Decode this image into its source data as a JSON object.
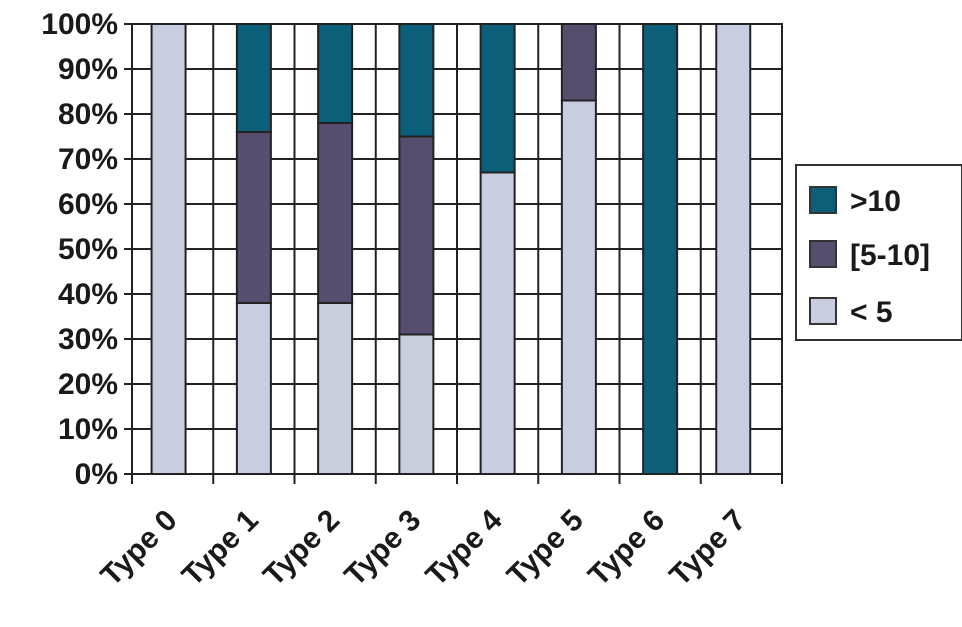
{
  "chart_data": {
    "type": "bar",
    "stacked": true,
    "percent": true,
    "categories": [
      "Type 0",
      "Type 1",
      "Type 2",
      "Type 3",
      "Type 4",
      "Type 5",
      "Type 6",
      "Type 7"
    ],
    "series": [
      {
        "name": "< 5",
        "values": [
          100,
          38,
          38,
          31,
          67,
          83,
          0,
          100
        ],
        "color": "#c9cde0"
      },
      {
        "name": "[5-10]",
        "values": [
          0,
          38,
          40,
          44,
          0,
          17,
          0,
          0
        ],
        "color": "#564d6f"
      },
      {
        "name": ">10",
        "values": [
          0,
          24,
          22,
          25,
          33,
          0,
          100,
          0
        ],
        "color": "#0b5f79"
      }
    ],
    "yticks": [
      "0%",
      "10%",
      "20%",
      "30%",
      "40%",
      "50%",
      "60%",
      "70%",
      "80%",
      "90%",
      "100%"
    ],
    "ylim": [
      0,
      100
    ],
    "legend": [
      "&gt;10",
      "[5-10]",
      "< 5"
    ],
    "legend_labels": [
      ">10",
      "[5-10]",
      "< 5"
    ],
    "legend_placement": "right",
    "grid": true
  }
}
